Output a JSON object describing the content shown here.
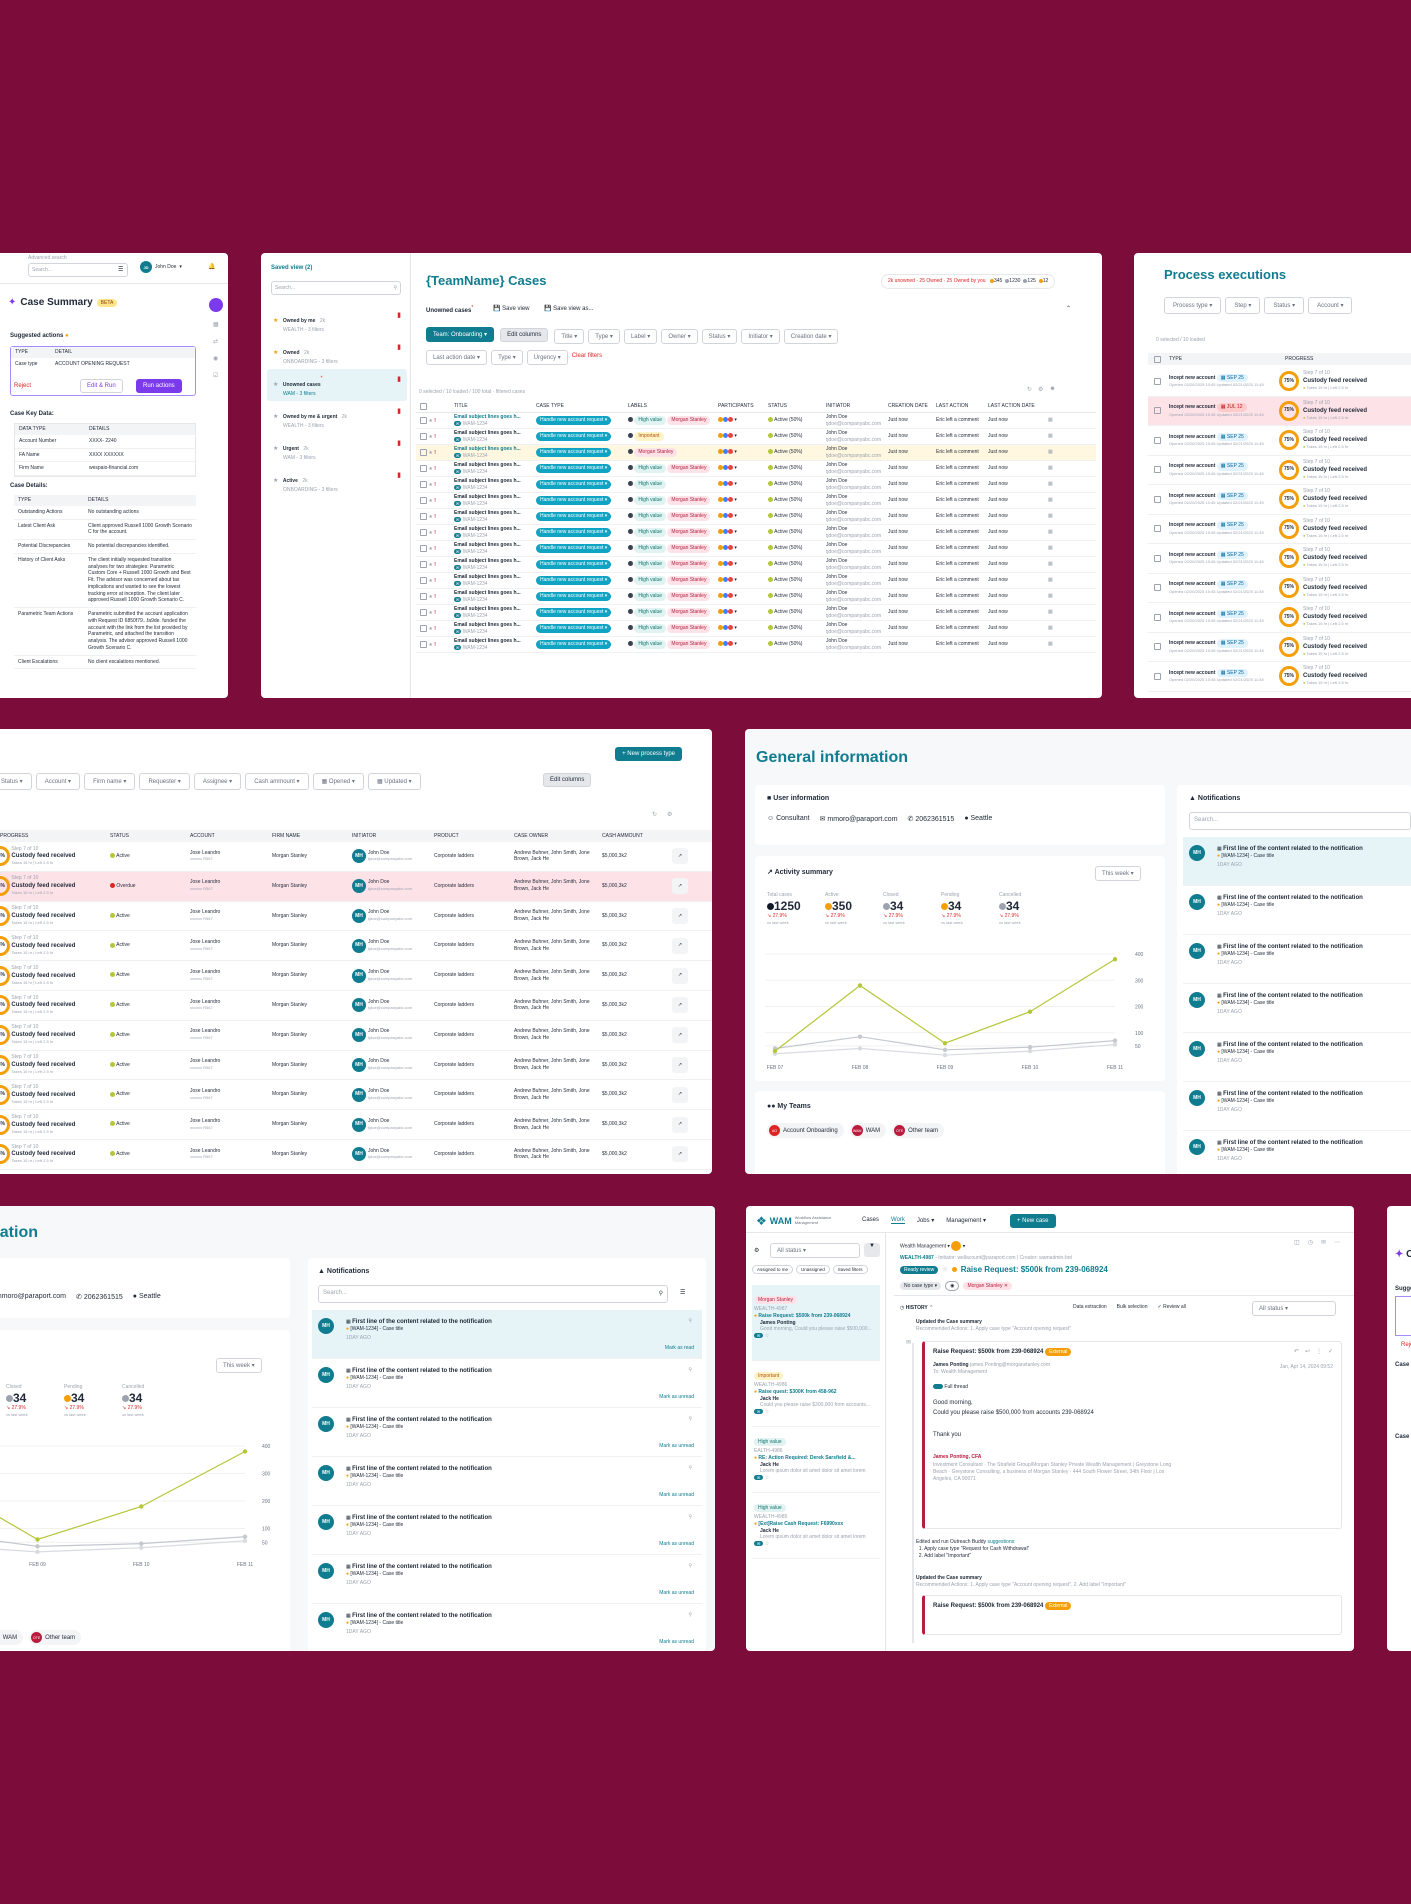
{
  "case_summary": {
    "search_label": "Advanced search",
    "search_placeholder": "Search...",
    "user": "John Doe",
    "title": "Case Summary",
    "beta": "BETA",
    "suggested_actions": "Suggested actions",
    "col_type": "TYPE",
    "col_detail": "DETAIL",
    "sa_type": "Case type",
    "sa_detail": "ACCOUNT OPENING REQUEST",
    "reject": "Reject",
    "edit_run": "Edit & Run",
    "run_actions": "Run actions",
    "key_data_title": "Case Key Data:",
    "kd_col1": "DATA TYPE",
    "kd_col2": "DETAILS",
    "key_data": [
      {
        "k": "Account Number",
        "v": "XXXX- 2240"
      },
      {
        "k": "FA Name",
        "v": "XXXX XXXXXX"
      },
      {
        "k": "Firm Name",
        "v": "wespaio-financial.com"
      }
    ],
    "details_title": "Case Details:",
    "d_col1": "TYPE",
    "d_col2": "DETAILS",
    "details": [
      {
        "k": "Outstanding Actions",
        "v": "No outstanding actions"
      },
      {
        "k": "Latest Client Ask",
        "v": "Client approved Russell 1000 Growth Scenario C for the account."
      },
      {
        "k": "Potential Discrepancies",
        "v": "No potential discrepancies identified."
      },
      {
        "k": "History of Client Asks",
        "v": "The client initially requested transition analyses for two strategies: Parametric Custom Core + Russell 1000 Growth and Best Fit. The advisor was concerned about tax implications and wanted to see the lowest tracking error at inception. The client later approved Russell 1000 Growth Scenario C."
      },
      {
        "k": "Parametric Team Actions",
        "v": "Parametric submitted the account application with Request ID 6850f79...fa9de. funded the account with the link from the list provided by Parametric, and attached the transition analysis. The advisor approved Russell 1000 Growth Scenario C."
      },
      {
        "k": "Client Escalations",
        "v": "No client escalations mentioned."
      }
    ]
  },
  "saved_views": {
    "title": "Saved view (2)",
    "search_placeholder": "Search...",
    "items": [
      {
        "name": "Owned by me",
        "count": "2k",
        "sub": "WEALTH - 3 filters"
      },
      {
        "name": "Owned",
        "count": "2k",
        "sub": "ONBOARDING - 3 filters"
      },
      {
        "name": "Unowned cases",
        "count": "",
        "sub": "WAM - 3 filters"
      },
      {
        "name": "Owned by me & urgent",
        "count": "2k",
        "sub": "WEALTH - 3 filters"
      },
      {
        "name": "Urgent",
        "count": "2k",
        "sub": "WAM - 3 filters"
      },
      {
        "name": "Active",
        "count": "2k",
        "sub": "ONBOARDING - 3 filters"
      }
    ]
  },
  "cases": {
    "title": "{TeamName} Cases",
    "counts": "2k unowned · 25 Owned · 25 Owned by you",
    "badges": [
      "345",
      "1230",
      "125",
      "12"
    ],
    "view_name": "Unowned cases",
    "save_view": "Save view",
    "save_view_as": "Save view as...",
    "team_btn": "Team: Onboarding",
    "edit_columns": "Edit columns",
    "filters": [
      "Title",
      "Type",
      "Label",
      "Owner",
      "Status",
      "Initiator",
      "Creation date"
    ],
    "filters2": [
      "Last action date",
      "Type",
      "Urgency"
    ],
    "clear_filters": "Clear filters",
    "selection": "0 selected / 10 loaded / 100 total · filtered cases",
    "columns": [
      "TITLE",
      "CASE TYPE",
      "LABELS",
      "PARTICIPANTS",
      "STATUS",
      "INITIATOR",
      "CREATION DATE",
      "LAST ACTION",
      "LAST ACTION DATE"
    ],
    "row": {
      "title": "Email subject lines goes h...",
      "tag": "WAM-1234",
      "case_type": "Handle new account request",
      "status": "Active (50%)",
      "initiator": "John Doe",
      "initiator_email": "tjdoe@companyabc.com",
      "created": "Just now",
      "last_action": "Eric left a comment",
      "last_action_date": "Just now"
    },
    "rows": [
      {
        "labels": [
          "High value",
          "Morgan Stanley"
        ],
        "hl": true
      },
      {
        "labels": [
          "Important"
        ],
        "hl": false
      },
      {
        "labels": [
          "Morgan Stanley"
        ],
        "hl": true
      },
      {
        "labels": [
          "High value",
          "Morgan Stanley"
        ],
        "hl": false
      },
      {
        "labels": [
          "High value"
        ],
        "hl": false
      },
      {
        "labels": [
          "High value",
          "Morgan Stanley"
        ],
        "hl": false
      },
      {
        "labels": [
          "High value",
          "Morgan Stanley"
        ],
        "hl": false
      },
      {
        "labels": [
          "High value",
          "Morgan Stanley"
        ],
        "hl": false
      },
      {
        "labels": [
          "High value",
          "Morgan Stanley"
        ],
        "hl": false
      },
      {
        "labels": [
          "High value",
          "Morgan Stanley"
        ],
        "hl": false
      },
      {
        "labels": [
          "High value",
          "Morgan Stanley"
        ],
        "hl": false
      },
      {
        "labels": [
          "High value",
          "Morgan Stanley"
        ],
        "hl": false
      },
      {
        "labels": [
          "High value",
          "Morgan Stanley"
        ],
        "hl": false
      },
      {
        "labels": [
          "High value",
          "Morgan Stanley"
        ],
        "hl": false
      },
      {
        "labels": [
          "High value",
          "Morgan Stanley"
        ],
        "hl": false
      }
    ]
  },
  "process": {
    "title": "Process executions",
    "filters": [
      "Process type",
      "Step",
      "Status",
      "Account"
    ],
    "selection": "0 selected / 10 loaded",
    "col_type": "TYPE",
    "col_progress": "PROGRESS",
    "row_title": "Incept new account",
    "row_sub": "Opened 02/20/2025 10:45 Updated 02/21/2025 11:45",
    "date": "SEP 25",
    "alt_date": "JUL 12",
    "pct": "75%",
    "step": "Step 7 of 10",
    "step_title": "Custody feed received",
    "step_sub": "Takes 15 hr | Left 2.5 hr",
    "row_count": 11,
    "red_row": 1
  },
  "process2": {
    "filters": [
      "Status",
      "Account",
      "Firm name",
      "Requester",
      "Assignee",
      "Cash ammount",
      "Opened",
      "Updated"
    ],
    "edit_columns": "Edit columns",
    "new_btn": "+ New process type",
    "columns": [
      "PROGRESS",
      "STATUS",
      "ACCOUNT",
      "FIRM NAME",
      "INITIATOR",
      "PRODUCT",
      "CASE OWNER",
      "CASH AMMOUNT"
    ],
    "status_active": "Active",
    "status_overdue": "Overdue",
    "account": "Jose Leandro",
    "account_sub": "xxxxxx R567",
    "firm": "Morgan Stanley",
    "initiator": "John Doe",
    "initiator_email": "tjdoe@companyabc.com",
    "product": "Corporate ladders",
    "owner": "Andrew Buhner, John Smith, Jone Brown, Jack He",
    "cash": "$5,000,3k2"
  },
  "general": {
    "title": "General information",
    "user_info": "User information",
    "role": "Consultant",
    "email": "mmoro@paraport.com",
    "phone": "2062361515",
    "city": "Seattle",
    "activity": "Activity summary",
    "range": "This week",
    "stats": [
      {
        "label": "Total cases",
        "value": "1250",
        "delta": "27.9%",
        "color": "#111827"
      },
      {
        "label": "Active",
        "value": "350",
        "delta": "27.9%",
        "color": "#f59e0b"
      },
      {
        "label": "Closed",
        "value": "34",
        "delta": "27.9%",
        "color": "#9ca3af"
      },
      {
        "label": "Pending",
        "value": "34",
        "delta": "27.9%",
        "color": "#f59e0b"
      },
      {
        "label": "Cancelled",
        "value": "34",
        "delta": "27.9%",
        "color": "#9ca3af"
      }
    ],
    "vs_last": "vs last week",
    "my_teams": "My Teams",
    "teams": [
      {
        "abbr": "AO",
        "name": "Account Onboarding"
      },
      {
        "abbr": "WAM",
        "name": "WAM"
      },
      {
        "abbr": "OTE",
        "name": "Other team"
      }
    ],
    "notifications": "Notifications",
    "notif_search": "Search...",
    "notif_title": "First line of the content related to the notification",
    "notif_sub": "[WAM-1234] - Case title",
    "notif_time": "1DAY AGO",
    "mark_read": "Mark as read",
    "mark_unread": "Mark as unread",
    "avatar": "MH"
  },
  "chart_data": {
    "type": "line",
    "categories": [
      "FEB 07",
      "FEB 08",
      "FEB 09",
      "FEB 10",
      "FEB 11"
    ],
    "ylim": [
      0,
      400
    ],
    "yticks": [
      50,
      100,
      200,
      300,
      400
    ],
    "series": [
      {
        "color": "#b5c639",
        "values": [
          30,
          280,
          60,
          180,
          380
        ]
      },
      {
        "color": "#c4c8cf",
        "values": [
          40,
          85,
          35,
          45,
          70
        ]
      },
      {
        "color": "#d8dbe0",
        "values": [
          20,
          40,
          15,
          30,
          55
        ]
      }
    ]
  },
  "wam": {
    "logo": "WAM",
    "logo_sub": "Workflow Assistance Management",
    "nav": [
      "Cases",
      "Work",
      "Jobs",
      "Management"
    ],
    "new_case": "+ New case",
    "status_filter": "All status",
    "chips": [
      "Assigned to me",
      "Unassigned",
      "Saved filters"
    ],
    "list": [
      {
        "label": "Morgan Stanley",
        "id": "WEALTH-4987",
        "title": "Raise Request: $500k from 239-068924",
        "who": "James Ponting",
        "text": "Good morning, Could you please raise $500,000..."
      },
      {
        "label": "Important",
        "id": "WEALTH-4986",
        "title": "Raise quest: $300K from 458-962",
        "who": "Jack He",
        "text": "Could you please raise $300,000 from accounts..."
      },
      {
        "label": "High value",
        "id": "EALTH-4986",
        "title": "RE: Action Required: Derek Sarsfield &...",
        "who": "Jack He",
        "text": "Lorem ipsum dolor sit amet dolor sit amet lorem"
      },
      {
        "label": "High value",
        "id": "WEALTH-4985",
        "title": "[Ext]Raise Cash Request: F6990xxx",
        "who": "Jack He",
        "text": "Lorem ipsum dolor sit amet dolor sit amet lorem"
      }
    ],
    "breadcrumb": "Wealth Management",
    "case_id": "WEALTH-4987",
    "initiator": "Initiator: wellacount@paraport.com | Creator: wamadmin-bot",
    "ready": "Ready review",
    "case_title": "Raise Request: $500k from 239-068924",
    "no_case_type": "No case type",
    "label": "Morgan Stanley",
    "history": "HISTORY",
    "actions": [
      "Data extraction",
      "Bulk selection",
      "Review all"
    ],
    "all_status": "All status",
    "updated": "Updated the Case summary",
    "recommended": "Recommended Actions: 1. Apply case type \"Account opening request\"",
    "email_title": "Raise Request: $500k from 239-068924",
    "external": "External",
    "sender": "James Ponting",
    "sender_email": "james.Ponting@morganstanley.com",
    "to": "To: Wealth Management",
    "date": "Jan, Apr 14, 2024 09:52",
    "full_thread": "Full thread",
    "greeting": "Good morning,",
    "body": "Could you please raise $500,000 from accounts 239-068924",
    "thanks": "Thank you",
    "sig_name": "James Ponting, CFA",
    "sig_lines": "Investment Consultant · The Strafield Group/Morgan Stanley Private Wealth Management | Greystone Long Beach · Greystone Consulting, a business of Morgan Stanley · 444 South Flower Street, 34th Floor | Los Angeles, CA 90071",
    "edited": "Edited and run Outreach Buddy",
    "suggestions": "suggestions:",
    "s1": "1. Apply case type \"Request for Cash Withdrawal\"",
    "s2": "2. Add label \"Important\"",
    "updated2": "Updated the Case summary",
    "recommended2": "Recommended Actions: 1. Apply case type \"Account opening request\", 2. Add label \"Important\"",
    "email_title2": "Raise Request: $500k from 239-068924"
  }
}
